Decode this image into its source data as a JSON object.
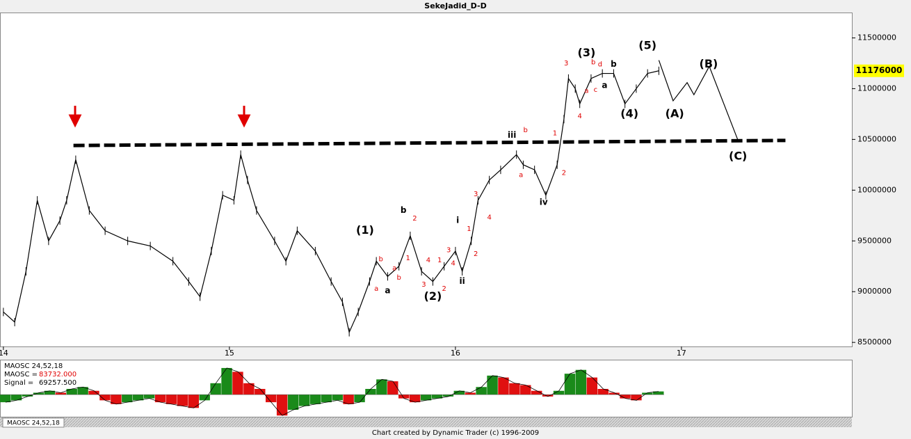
{
  "header": {
    "title": "SekeJadid_D-D"
  },
  "footer": {
    "text": "Chart created by Dynamic Trader  (c) 1996-2009"
  },
  "tab": {
    "label": "MAOSC 24,52,18"
  },
  "chart_data": [
    {
      "type": "line",
      "color": "#000000",
      "x": [
        14.0,
        14.05,
        14.1,
        14.15,
        14.2,
        14.25,
        14.28,
        14.32,
        14.38,
        14.45,
        14.55,
        14.65,
        14.75,
        14.82,
        14.87,
        14.92,
        14.97,
        15.02,
        15.05,
        15.08,
        15.12,
        15.2,
        15.25,
        15.3,
        15.38,
        15.45,
        15.5,
        15.53,
        15.57,
        15.62,
        15.65,
        15.7,
        15.75,
        15.8,
        15.85,
        15.9,
        15.95,
        16.0,
        16.03,
        16.07,
        16.1,
        16.15,
        16.2,
        16.27,
        16.3,
        16.35,
        16.4,
        16.45,
        16.48,
        16.5,
        16.53,
        16.55,
        16.6,
        16.65,
        16.7,
        16.75,
        16.8,
        16.85,
        16.9
      ],
      "values": [
        8800000,
        8700000,
        9200000,
        9900000,
        9500000,
        9700000,
        9900000,
        10300000,
        9800000,
        9600000,
        9500000,
        9450000,
        9300000,
        9100000,
        8950000,
        9400000,
        9950000,
        9900000,
        10350000,
        10100000,
        9800000,
        9500000,
        9300000,
        9600000,
        9400000,
        9100000,
        8900000,
        8600000,
        8800000,
        9100000,
        9300000,
        9150000,
        9250000,
        9550000,
        9200000,
        9100000,
        9250000,
        9400000,
        9200000,
        9500000,
        9900000,
        10100000,
        10200000,
        10350000,
        10250000,
        10200000,
        9950000,
        10250000,
        10700000,
        11100000,
        11000000,
        10850000,
        11100000,
        11150000,
        11150000,
        10850000,
        11000000,
        11150000,
        11176000
      ],
      "xlim": [
        13.985,
        17.754
      ],
      "ylim": [
        8460000,
        11750000
      ],
      "xticks": [
        14,
        15,
        16,
        17
      ],
      "yticks": [
        8500000,
        9000000,
        9500000,
        10000000,
        10500000,
        11000000,
        11500000
      ],
      "last_price": 11176000,
      "trendline": {
        "x": [
          14.31,
          17.46
        ],
        "values": [
          10440000,
          10490000
        ]
      },
      "projection": {
        "x": [
          16.9,
          16.963,
          17.025,
          17.055,
          17.123,
          17.252
        ],
        "values": [
          11280000,
          10880000,
          11060000,
          10940000,
          11220000,
          10480000
        ]
      },
      "wave_labels": [
        {
          "text": "(1)",
          "x": 15.6,
          "y": 9600000
        },
        {
          "text": "(2)",
          "x": 15.9,
          "y": 8950000
        },
        {
          "text": "(3)",
          "x": 16.58,
          "y": 11350000
        },
        {
          "text": "(4)",
          "x": 16.77,
          "y": 10750000
        },
        {
          "text": "(5)",
          "x": 16.85,
          "y": 11420000
        },
        {
          "text": "(A)",
          "x": 16.97,
          "y": 10750000
        },
        {
          "text": "(B)",
          "x": 17.12,
          "y": 11240000
        },
        {
          "text": "(C)",
          "x": 17.25,
          "y": 10330000
        }
      ],
      "sub_labels": [
        {
          "text": "b",
          "x": 15.77,
          "y": 9800000
        },
        {
          "text": "a",
          "x": 15.7,
          "y": 9010000
        },
        {
          "text": "i",
          "x": 16.01,
          "y": 9700000
        },
        {
          "text": "ii",
          "x": 16.03,
          "y": 9100000
        },
        {
          "text": "iii",
          "x": 16.25,
          "y": 10540000
        },
        {
          "text": "iv",
          "x": 16.39,
          "y": 9880000
        },
        {
          "text": "b",
          "x": 16.7,
          "y": 11240000
        },
        {
          "text": "a",
          "x": 16.66,
          "y": 11030000
        }
      ],
      "minor_color": "#e00000",
      "minor_labels": [
        {
          "text": "a",
          "x": 15.65,
          "y": 9030000
        },
        {
          "text": "b",
          "x": 15.67,
          "y": 9320000
        },
        {
          "text": "a",
          "x": 15.73,
          "y": 9230000
        },
        {
          "text": "b",
          "x": 15.75,
          "y": 9140000
        },
        {
          "text": "1",
          "x": 15.79,
          "y": 9330000
        },
        {
          "text": "2",
          "x": 15.82,
          "y": 9720000
        },
        {
          "text": "3",
          "x": 15.86,
          "y": 9070000
        },
        {
          "text": "4",
          "x": 15.88,
          "y": 9310000
        },
        {
          "text": "1",
          "x": 15.93,
          "y": 9310000
        },
        {
          "text": "2",
          "x": 15.95,
          "y": 9030000
        },
        {
          "text": "3",
          "x": 15.97,
          "y": 9410000
        },
        {
          "text": "4",
          "x": 15.99,
          "y": 9280000
        },
        {
          "text": "1",
          "x": 16.06,
          "y": 9620000
        },
        {
          "text": "2",
          "x": 16.09,
          "y": 9370000
        },
        {
          "text": "3",
          "x": 16.09,
          "y": 9960000
        },
        {
          "text": "4",
          "x": 16.15,
          "y": 9730000
        },
        {
          "text": "a",
          "x": 16.29,
          "y": 10150000
        },
        {
          "text": "b",
          "x": 16.31,
          "y": 10590000
        },
        {
          "text": "1",
          "x": 16.44,
          "y": 10560000
        },
        {
          "text": "2",
          "x": 16.48,
          "y": 10170000
        },
        {
          "text": "3",
          "x": 16.49,
          "y": 11250000
        },
        {
          "text": "4",
          "x": 16.55,
          "y": 10730000
        },
        {
          "text": "a",
          "x": 16.58,
          "y": 10980000
        },
        {
          "text": "b",
          "x": 16.61,
          "y": 11260000
        },
        {
          "text": "c",
          "x": 16.62,
          "y": 10990000
        },
        {
          "text": "d",
          "x": 16.64,
          "y": 11240000
        }
      ]
    },
    {
      "type": "bar",
      "title": "MAOSC 24,52,18",
      "up_color": "#1a8a1a",
      "down_color": "#e01010",
      "ylim": [
        -600000,
        900000
      ],
      "values": [
        -200000,
        -150000,
        -50000,
        50000,
        100000,
        50000,
        150000,
        200000,
        100000,
        -150000,
        -250000,
        -200000,
        -150000,
        -100000,
        -200000,
        -250000,
        -300000,
        -350000,
        -150000,
        300000,
        700000,
        600000,
        300000,
        150000,
        -200000,
        -550000,
        -400000,
        -300000,
        -250000,
        -200000,
        -150000,
        -250000,
        -200000,
        150000,
        400000,
        350000,
        -100000,
        -200000,
        -150000,
        -100000,
        -50000,
        100000,
        50000,
        200000,
        500000,
        450000,
        300000,
        250000,
        100000,
        -50000,
        100000,
        550000,
        650000,
        450000,
        150000,
        50000,
        -100000,
        -150000,
        50000,
        83732
      ],
      "readouts": [
        {
          "name": "MAOSC =",
          "value": 83732,
          "value_label": "83732.000",
          "color": "#e00000"
        },
        {
          "name": "Signal =",
          "value": 69257.5,
          "value_label": "69257.500",
          "color": "#000000"
        }
      ]
    }
  ]
}
